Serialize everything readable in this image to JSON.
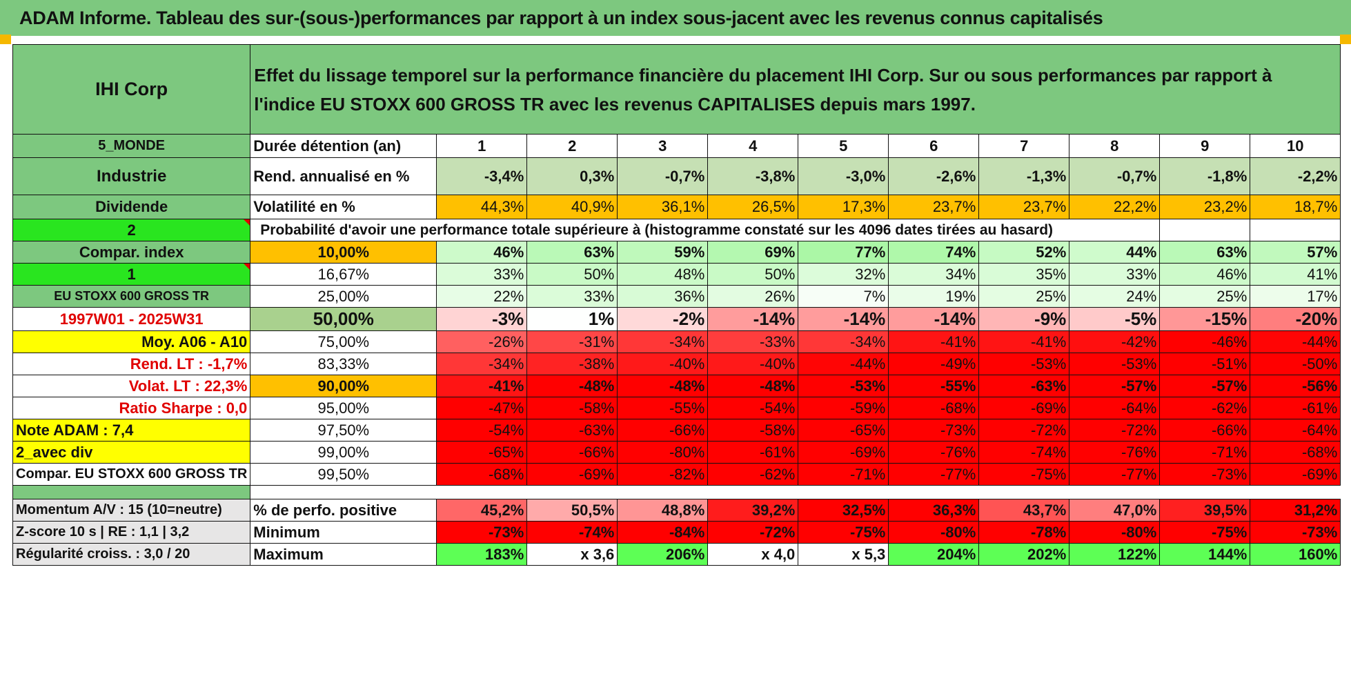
{
  "banner": "ADAM Informe. Tableau des sur-(sous-)performances par rapport à un index sous-jacent avec les revenus connus capitalisés",
  "title_cell": "IHI Corp",
  "description": "Effet du lissage temporel sur la performance financière du placement IHI Corp. Sur ou sous performances par rapport à l'indice EU STOXX 600 GROSS TR avec les revenus CAPITALISES depuis mars 1997.",
  "left": {
    "region": "5_MONDE",
    "sector": "Industrie",
    "dividend": "Dividende",
    "sel1": "2",
    "compar_index": "Compar. index",
    "sel2": "1",
    "index_name": "EU STOXX 600 GROSS TR",
    "period": "1997W01 - 2025W31",
    "moy": "Moy. A06 - A10",
    "rend_lt": "Rend. LT :   -1,7%",
    "volat_lt": "Volat. LT :   22,3%",
    "sharpe": "Ratio Sharpe :     0,0",
    "note": "Note ADAM : 7,4",
    "avec_div": "2_avec div",
    "compar_full": "Compar. EU STOXX 600 GROSS TR",
    "momentum": "Momentum A/V : 15 (10=neutre)",
    "zscore": "Z-score 10 s | RE : 1,1 | 3,2",
    "regularite": "Régularité croiss. : 3,0 / 20"
  },
  "header": {
    "label": "Durée détention (an)",
    "years": [
      "1",
      "2",
      "3",
      "4",
      "5",
      "6",
      "7",
      "8",
      "9",
      "10"
    ]
  },
  "rend": {
    "label": "Rend. annualisé en %",
    "values": [
      "-3,4%",
      "0,3%",
      "-0,7%",
      "-3,8%",
      "-3,0%",
      "-2,6%",
      "-1,3%",
      "-0,7%",
      "-1,8%",
      "-2,2%"
    ]
  },
  "vol": {
    "label": "Volatilité en %",
    "values": [
      "44,3%",
      "40,9%",
      "36,1%",
      "26,5%",
      "17,3%",
      "23,7%",
      "23,7%",
      "22,2%",
      "23,2%",
      "18,7%"
    ]
  },
  "prob_header": "Probabilité d'avoir une performance totale supérieure à (histogramme constaté sur les 4096 dates tirées au hasard)",
  "prob_rows": [
    {
      "threshold": "10,00%",
      "values": [
        "46%",
        "63%",
        "59%",
        "69%",
        "77%",
        "74%",
        "52%",
        "44%",
        "63%",
        "57%"
      ]
    },
    {
      "threshold": "16,67%",
      "values": [
        "33%",
        "50%",
        "48%",
        "50%",
        "32%",
        "34%",
        "35%",
        "33%",
        "46%",
        "41%"
      ]
    },
    {
      "threshold": "25,00%",
      "values": [
        "22%",
        "33%",
        "36%",
        "26%",
        "7%",
        "19%",
        "25%",
        "24%",
        "25%",
        "17%"
      ]
    },
    {
      "threshold": "50,00%",
      "values": [
        "-3%",
        "1%",
        "-2%",
        "-14%",
        "-14%",
        "-14%",
        "-9%",
        "-5%",
        "-15%",
        "-20%"
      ]
    },
    {
      "threshold": "75,00%",
      "values": [
        "-26%",
        "-31%",
        "-34%",
        "-33%",
        "-34%",
        "-41%",
        "-41%",
        "-42%",
        "-46%",
        "-44%"
      ]
    },
    {
      "threshold": "83,33%",
      "values": [
        "-34%",
        "-38%",
        "-40%",
        "-40%",
        "-44%",
        "-49%",
        "-53%",
        "-53%",
        "-51%",
        "-50%"
      ]
    },
    {
      "threshold": "90,00%",
      "values": [
        "-41%",
        "-48%",
        "-48%",
        "-48%",
        "-53%",
        "-55%",
        "-63%",
        "-57%",
        "-57%",
        "-56%"
      ]
    },
    {
      "threshold": "95,00%",
      "values": [
        "-47%",
        "-58%",
        "-55%",
        "-54%",
        "-59%",
        "-68%",
        "-69%",
        "-64%",
        "-62%",
        "-61%"
      ]
    },
    {
      "threshold": "97,50%",
      "values": [
        "-54%",
        "-63%",
        "-66%",
        "-58%",
        "-65%",
        "-73%",
        "-72%",
        "-72%",
        "-66%",
        "-64%"
      ]
    },
    {
      "threshold": "99,00%",
      "values": [
        "-65%",
        "-66%",
        "-80%",
        "-61%",
        "-69%",
        "-76%",
        "-74%",
        "-76%",
        "-71%",
        "-68%"
      ]
    },
    {
      "threshold": "99,50%",
      "values": [
        "-68%",
        "-69%",
        "-82%",
        "-62%",
        "-71%",
        "-77%",
        "-75%",
        "-77%",
        "-73%",
        "-69%"
      ]
    }
  ],
  "bottom": {
    "pos": {
      "label": "% de perfo. positive",
      "values": [
        "45,2%",
        "50,5%",
        "48,8%",
        "39,2%",
        "32,5%",
        "36,3%",
        "43,7%",
        "47,0%",
        "39,5%",
        "31,2%"
      ]
    },
    "min": {
      "label": "Minimum",
      "values": [
        "-73%",
        "-74%",
        "-84%",
        "-72%",
        "-75%",
        "-80%",
        "-78%",
        "-80%",
        "-75%",
        "-73%"
      ]
    },
    "max": {
      "label": "Maximum",
      "values": [
        "183%",
        "x 3,6",
        "206%",
        "x 4,0",
        "x 5,3",
        "204%",
        "202%",
        "122%",
        "144%",
        "160%"
      ]
    }
  },
  "colors": {
    "header_green": "#7dc87f",
    "bright_green": "#29e51f",
    "yellow": "#ffff00",
    "orange": "#ffc000",
    "red": "#ff0000"
  }
}
